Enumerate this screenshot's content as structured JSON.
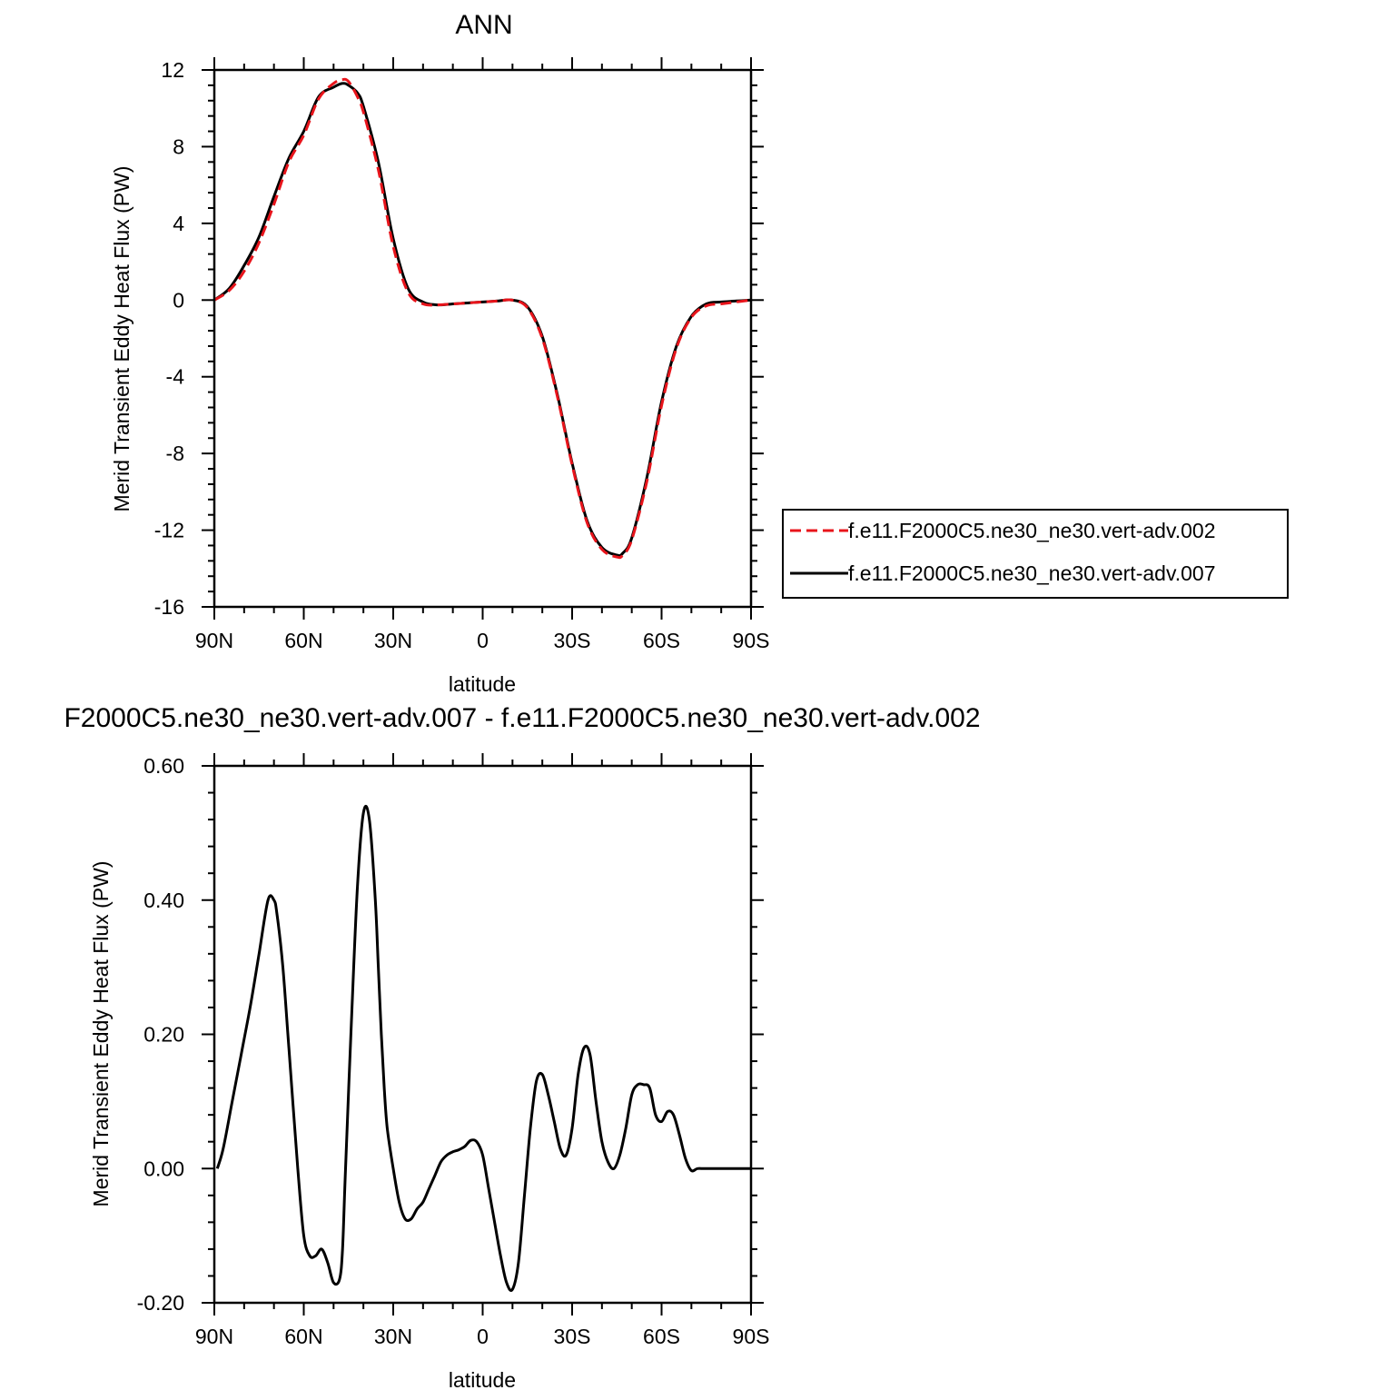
{
  "chart_data": [
    {
      "type": "line",
      "title": "ANN",
      "xlabel": "latitude",
      "ylabel": "Merid Transient Eddy Heat Flux (PW)",
      "xlim": [
        90,
        -90
      ],
      "ylim": [
        -16,
        12
      ],
      "x_ticks": [
        {
          "value": 90,
          "label": "90N"
        },
        {
          "value": 60,
          "label": "60N"
        },
        {
          "value": 30,
          "label": "30N"
        },
        {
          "value": 0,
          "label": "0"
        },
        {
          "value": -30,
          "label": "30S"
        },
        {
          "value": -60,
          "label": "60S"
        },
        {
          "value": -90,
          "label": "90S"
        }
      ],
      "y_ticks": [
        {
          "value": 12,
          "label": "12"
        },
        {
          "value": 8,
          "label": "8"
        },
        {
          "value": 4,
          "label": "4"
        },
        {
          "value": 0,
          "label": "0"
        },
        {
          "value": -4,
          "label": "-4"
        },
        {
          "value": -8,
          "label": "-8"
        },
        {
          "value": -12,
          "label": "-12"
        },
        {
          "value": -16,
          "label": "-16"
        }
      ],
      "legend_position": "right",
      "series": [
        {
          "name": "f.e11.F2000C5.ne30_ne30.vert-adv.002",
          "color": "#e8141b",
          "dash": "dashed",
          "x": [
            90,
            85,
            80,
            75,
            70,
            65,
            60,
            55,
            50,
            47,
            45,
            42,
            40,
            35,
            30,
            25,
            20,
            15,
            10,
            5,
            0,
            -5,
            -10,
            -15,
            -20,
            -25,
            -30,
            -35,
            -40,
            -45,
            -47,
            -50,
            -55,
            -60,
            -65,
            -70,
            -75,
            -80,
            -85,
            -90
          ],
          "y": [
            0.0,
            0.5,
            1.5,
            3.0,
            5.0,
            7.2,
            8.6,
            10.5,
            11.3,
            11.5,
            11.4,
            10.6,
            9.8,
            6.8,
            2.8,
            0.4,
            -0.2,
            -0.25,
            -0.2,
            -0.15,
            -0.1,
            -0.05,
            0.0,
            -0.4,
            -2.0,
            -5.0,
            -8.6,
            -11.6,
            -13.0,
            -13.4,
            -13.3,
            -12.5,
            -9.5,
            -5.5,
            -2.5,
            -0.9,
            -0.3,
            -0.2,
            -0.1,
            0.0
          ]
        },
        {
          "name": "f.e11.F2000C5.ne30_ne30.vert-adv.007",
          "color": "#000000",
          "dash": "solid",
          "x": [
            90,
            85,
            80,
            75,
            70,
            65,
            60,
            55,
            50,
            47,
            45,
            42,
            40,
            35,
            30,
            25,
            20,
            15,
            10,
            5,
            0,
            -5,
            -10,
            -15,
            -20,
            -25,
            -30,
            -35,
            -40,
            -45,
            -47,
            -50,
            -55,
            -60,
            -65,
            -70,
            -75,
            -80,
            -85,
            -90
          ],
          "y": [
            0.0,
            0.6,
            1.8,
            3.3,
            5.4,
            7.4,
            8.8,
            10.6,
            11.1,
            11.3,
            11.2,
            10.8,
            10.1,
            7.2,
            3.2,
            0.6,
            -0.1,
            -0.25,
            -0.2,
            -0.15,
            -0.1,
            -0.05,
            0.0,
            -0.35,
            -1.9,
            -4.9,
            -8.5,
            -11.5,
            -12.9,
            -13.3,
            -13.2,
            -12.4,
            -9.3,
            -5.3,
            -2.4,
            -0.85,
            -0.2,
            -0.1,
            -0.05,
            0.0
          ]
        }
      ]
    },
    {
      "type": "line",
      "title": "F2000C5.ne30_ne30.vert-adv.007 - f.e11.F2000C5.ne30_ne30.vert-adv.002",
      "xlabel": "latitude",
      "ylabel": "Merid Transient Eddy Heat Flux (PW)",
      "xlim": [
        90,
        -90
      ],
      "ylim": [
        -0.2,
        0.6
      ],
      "x_ticks": [
        {
          "value": 90,
          "label": "90N"
        },
        {
          "value": 60,
          "label": "60N"
        },
        {
          "value": 30,
          "label": "30N"
        },
        {
          "value": 0,
          "label": "0"
        },
        {
          "value": -30,
          "label": "30S"
        },
        {
          "value": -60,
          "label": "60S"
        },
        {
          "value": -90,
          "label": "90S"
        }
      ],
      "y_ticks": [
        {
          "value": 0.6,
          "label": "0.60"
        },
        {
          "value": 0.4,
          "label": "0.40"
        },
        {
          "value": 0.2,
          "label": "0.20"
        },
        {
          "value": 0.0,
          "label": "0.00"
        },
        {
          "value": -0.2,
          "label": "-0.20"
        }
      ],
      "series": [
        {
          "color": "#000000",
          "dash": "solid",
          "x": [
            89,
            87,
            84,
            81,
            78,
            75,
            72,
            70,
            69,
            67,
            65,
            62,
            60,
            58,
            56,
            54,
            52,
            50,
            48,
            47,
            46,
            44,
            42,
            40,
            38,
            36,
            35,
            34,
            33,
            32,
            30,
            28,
            26,
            24,
            22,
            20,
            18,
            16,
            14,
            12,
            10,
            8,
            6,
            4,
            2,
            0,
            -2,
            -4,
            -6,
            -8,
            -10,
            -12,
            -14,
            -16,
            -18,
            -20,
            -22,
            -24,
            -26,
            -28,
            -30,
            -32,
            -34,
            -36,
            -38,
            -40,
            -42,
            -44,
            -46,
            -48,
            -50,
            -52,
            -54,
            -56,
            -58,
            -60,
            -62,
            -64,
            -66,
            -68,
            -70,
            -72,
            -74,
            -76,
            -78,
            -80,
            -82,
            -84,
            -86,
            -88,
            -90
          ],
          "y": [
            0.0,
            0.03,
            0.1,
            0.17,
            0.24,
            0.32,
            0.4,
            0.4,
            0.38,
            0.3,
            0.18,
            0.0,
            -0.1,
            -0.13,
            -0.13,
            -0.12,
            -0.14,
            -0.17,
            -0.165,
            -0.12,
            0.0,
            0.22,
            0.42,
            0.53,
            0.52,
            0.4,
            0.3,
            0.2,
            0.12,
            0.06,
            0.0,
            -0.05,
            -0.075,
            -0.075,
            -0.06,
            -0.05,
            -0.03,
            -0.01,
            0.01,
            0.02,
            0.025,
            0.028,
            0.033,
            0.042,
            0.04,
            0.02,
            -0.03,
            -0.08,
            -0.13,
            -0.17,
            -0.18,
            -0.14,
            -0.04,
            0.06,
            0.13,
            0.14,
            0.11,
            0.07,
            0.03,
            0.02,
            0.06,
            0.14,
            0.18,
            0.17,
            0.1,
            0.04,
            0.01,
            0.0,
            0.02,
            0.06,
            0.11,
            0.125,
            0.125,
            0.12,
            0.08,
            0.07,
            0.085,
            0.08,
            0.05,
            0.015,
            -0.003,
            0.0,
            0.0,
            0.0,
            0.0,
            0.0,
            0.0,
            0.0,
            0.0,
            0.0,
            0.0
          ]
        }
      ]
    }
  ]
}
